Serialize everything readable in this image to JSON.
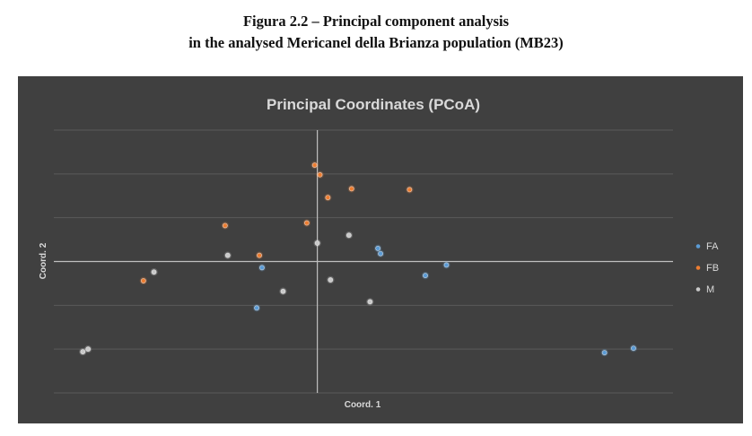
{
  "caption": {
    "line1": "Figura 2.2 – Principal component analysis",
    "line2": "in the analysed Mericanel della Brianza population (MB23)"
  },
  "chart_data": {
    "type": "scatter",
    "title": "Principal Coordinates (PCoA)",
    "xlabel": "Coord. 1",
    "ylabel": "Coord. 2",
    "xlim": [
      -1.0,
      1.35
    ],
    "ylim": [
      -1.5,
      1.5
    ],
    "grid": true,
    "legend_position": "right",
    "series": [
      {
        "name": "FA",
        "color": "#5b9bd5",
        "points": [
          [
            -0.23,
            -0.53
          ],
          [
            -0.21,
            -0.07
          ],
          [
            0.23,
            0.15
          ],
          [
            0.24,
            0.09
          ],
          [
            0.41,
            -0.16
          ],
          [
            0.49,
            -0.04
          ],
          [
            1.09,
            -1.04
          ],
          [
            1.2,
            -0.99
          ]
        ]
      },
      {
        "name": "FB",
        "color": "#ed7d31",
        "points": [
          [
            -0.66,
            -0.22
          ],
          [
            -0.35,
            0.41
          ],
          [
            -0.22,
            0.07
          ],
          [
            -0.04,
            0.44
          ],
          [
            -0.01,
            1.1
          ],
          [
            0.01,
            0.99
          ],
          [
            0.04,
            0.73
          ],
          [
            0.13,
            0.83
          ],
          [
            0.35,
            0.82
          ]
        ]
      },
      {
        "name": "M",
        "color": "#c9c9c9",
        "points": [
          [
            -0.89,
            -1.03
          ],
          [
            -0.87,
            -1.0
          ],
          [
            -0.62,
            -0.12
          ],
          [
            -0.34,
            0.07
          ],
          [
            -0.13,
            -0.34
          ],
          [
            0.0,
            0.21
          ],
          [
            0.05,
            -0.21
          ],
          [
            0.12,
            0.3
          ],
          [
            0.2,
            -0.46
          ]
        ]
      }
    ]
  }
}
